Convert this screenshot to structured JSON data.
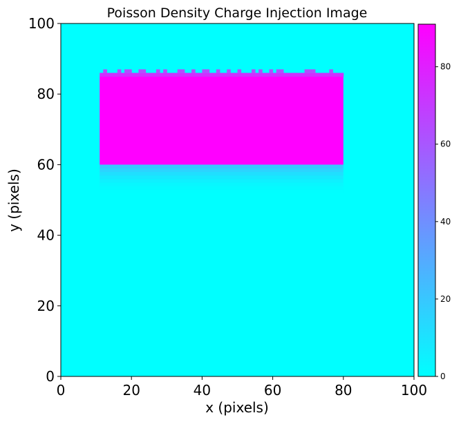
{
  "chart_data": {
    "type": "heatmap",
    "title": "Poisson Density Charge Injection Image",
    "xlabel": "x (pixels)",
    "ylabel": "y (pixels)",
    "xlim": [
      0,
      100
    ],
    "ylim": [
      0,
      100
    ],
    "x_ticks": [
      "0",
      "20",
      "40",
      "60",
      "80",
      "100"
    ],
    "y_ticks": [
      "0",
      "20",
      "40",
      "60",
      "80",
      "100"
    ],
    "colormap": "cool",
    "color_low": "#00ffff",
    "color_high": "#ff00ff",
    "colorbar": {
      "range": [
        0,
        91
      ],
      "ticks": [
        "0",
        "20",
        "40",
        "60",
        "80"
      ]
    },
    "background_value": 0,
    "injected_region": {
      "x_range": [
        11,
        80
      ],
      "y_range": [
        60,
        85
      ],
      "value": 91,
      "top_edge_max_y": 87,
      "trail_below_y_range": [
        52,
        60
      ],
      "trail_below_start_value": 20
    }
  }
}
